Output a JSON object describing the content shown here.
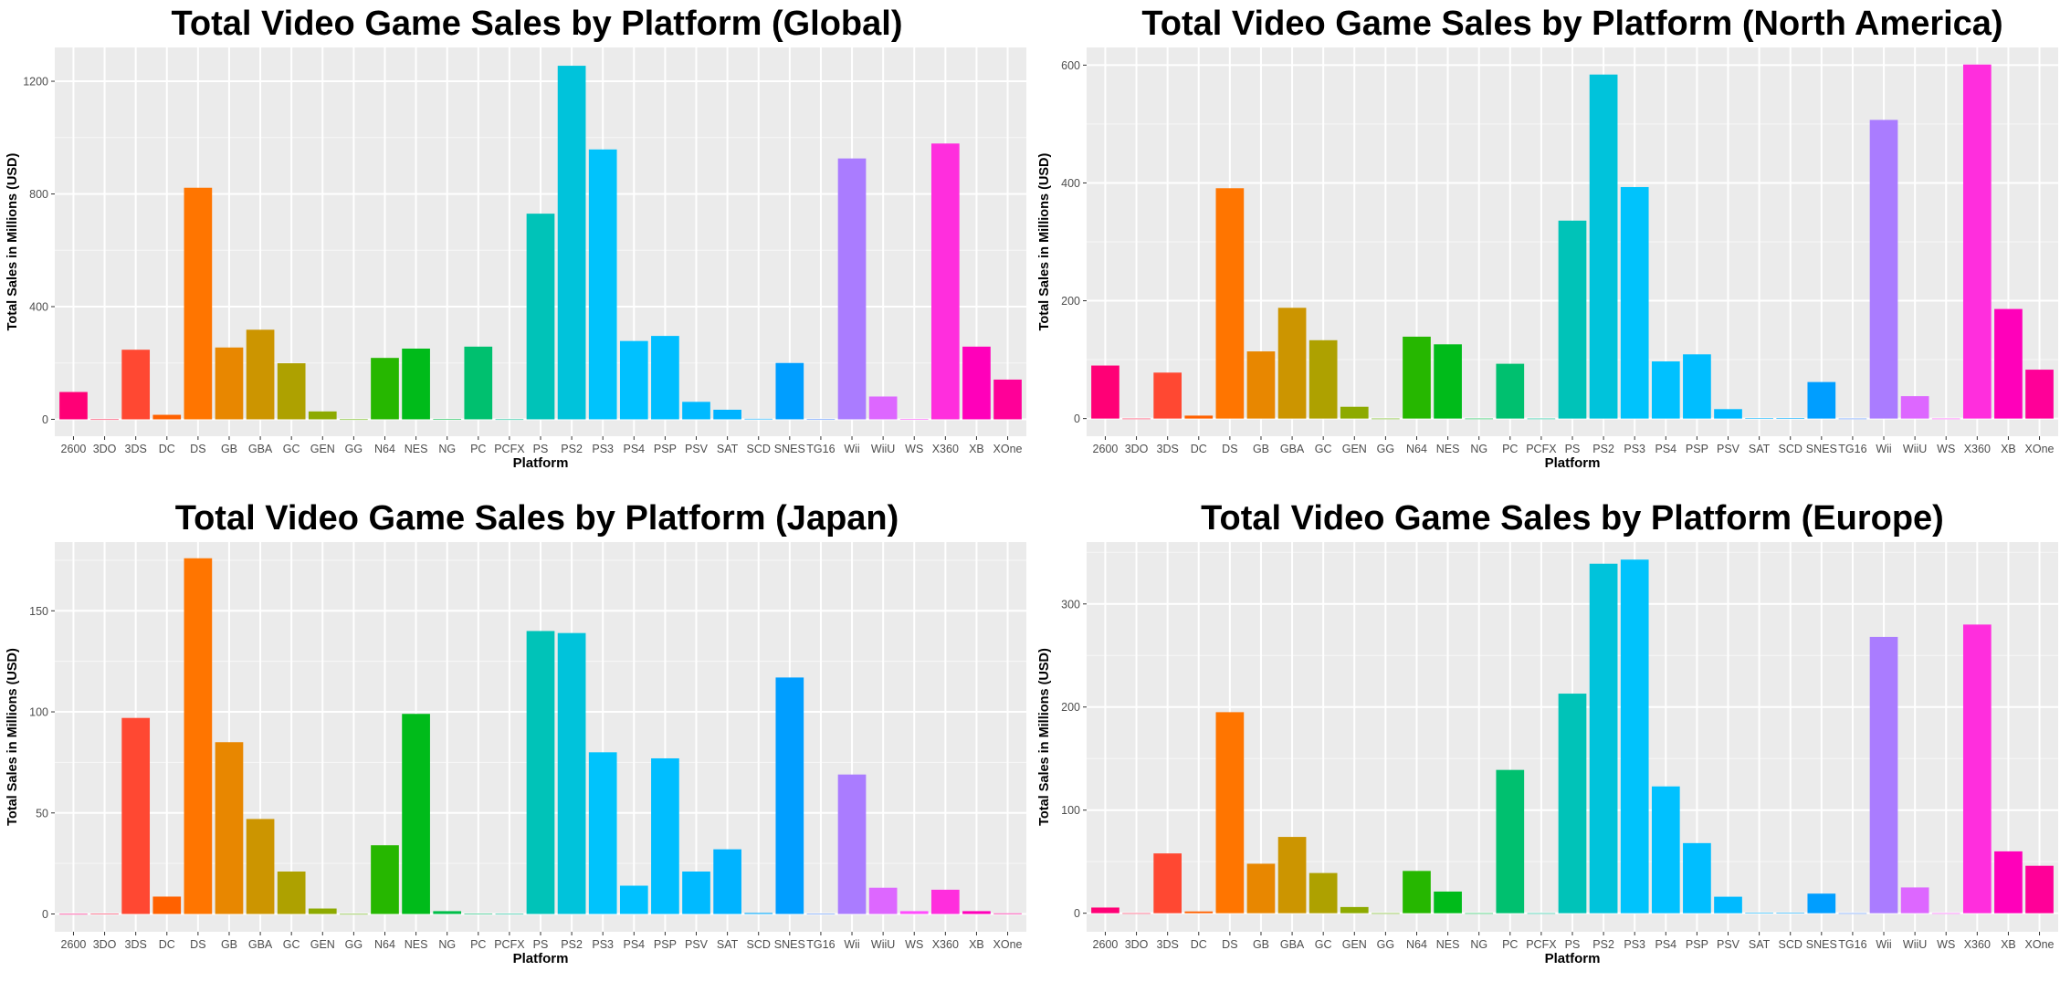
{
  "chart_data": [
    {
      "type": "bar",
      "title": "Total Video Game Sales by Platform (Global)",
      "xlabel": "Platform",
      "ylabel": "Total Sales in Millions (USD)",
      "categories": [
        "2600",
        "3DO",
        "3DS",
        "DC",
        "DS",
        "GB",
        "GBA",
        "GC",
        "GEN",
        "GG",
        "N64",
        "NES",
        "NG",
        "PC",
        "PCFX",
        "PS",
        "PS2",
        "PS3",
        "PS4",
        "PSP",
        "PSV",
        "SAT",
        "SCD",
        "SNES",
        "TG16",
        "Wii",
        "WiiU",
        "WS",
        "X360",
        "XB",
        "XOne"
      ],
      "values": [
        97,
        0.1,
        247,
        16,
        822,
        255,
        318,
        199,
        28,
        0.04,
        218,
        251,
        1.4,
        258,
        0.03,
        730,
        1255,
        958,
        278,
        296,
        62,
        34,
        1.9,
        200,
        0.2,
        926,
        81,
        1.4,
        979,
        258,
        141
      ],
      "ylim": [
        -60,
        1320
      ],
      "yticks": [
        0,
        400,
        800,
        1200
      ],
      "grid": true,
      "legend": "none"
    },
    {
      "type": "bar",
      "title": "Total Video Game Sales by Platform (North America)",
      "xlabel": "Platform",
      "ylabel": "Total Sales in Millions (USD)",
      "categories": [
        "2600",
        "3DO",
        "3DS",
        "DC",
        "DS",
        "GB",
        "GBA",
        "GC",
        "GEN",
        "GG",
        "N64",
        "NES",
        "NG",
        "PC",
        "PCFX",
        "PS",
        "PS2",
        "PS3",
        "PS4",
        "PSP",
        "PSV",
        "SAT",
        "SCD",
        "SNES",
        "TG16",
        "Wii",
        "WiiU",
        "WS",
        "X360",
        "XB",
        "XOne"
      ],
      "values": [
        90,
        0,
        78,
        5,
        391,
        114,
        188,
        133,
        20,
        0,
        139,
        126,
        0,
        93,
        0,
        336,
        584,
        393,
        97,
        109,
        16,
        0.7,
        1,
        62,
        0,
        507,
        38,
        0,
        601,
        186,
        83
      ],
      "ylim": [
        -30,
        630
      ],
      "yticks": [
        0,
        200,
        400,
        600
      ],
      "grid": true,
      "legend": "none"
    },
    {
      "type": "bar",
      "title": "Total Video Game Sales by Platform (Japan)",
      "xlabel": "Platform",
      "ylabel": "Total Sales in Millions (USD)",
      "categories": [
        "2600",
        "3DO",
        "3DS",
        "DC",
        "DS",
        "GB",
        "GBA",
        "GC",
        "GEN",
        "GG",
        "N64",
        "NES",
        "NG",
        "PC",
        "PCFX",
        "PS",
        "PS2",
        "PS3",
        "PS4",
        "PSP",
        "PSV",
        "SAT",
        "SCD",
        "SNES",
        "TG16",
        "Wii",
        "WiiU",
        "WS",
        "X360",
        "XB",
        "XOne"
      ],
      "values": [
        0,
        0.1,
        97,
        8.6,
        176,
        85,
        47,
        21,
        2.7,
        0,
        34,
        99,
        1.4,
        0.2,
        0.03,
        140,
        139,
        80,
        14,
        77,
        21,
        32,
        0.5,
        117,
        0.2,
        69,
        13,
        1.4,
        12,
        1.4,
        0.3
      ],
      "ylim": [
        -8.8,
        184
      ],
      "yticks": [
        0,
        50,
        100,
        150
      ],
      "grid": true,
      "legend": "none"
    },
    {
      "type": "bar",
      "title": "Total Video Game Sales by Platform (Europe)",
      "xlabel": "Platform",
      "ylabel": "Total Sales in Millions (USD)",
      "categories": [
        "2600",
        "3DO",
        "3DS",
        "DC",
        "DS",
        "GB",
        "GBA",
        "GC",
        "GEN",
        "GG",
        "N64",
        "NES",
        "NG",
        "PC",
        "PCFX",
        "PS",
        "PS2",
        "PS3",
        "PS4",
        "PSP",
        "PSV",
        "SAT",
        "SCD",
        "SNES",
        "TG16",
        "Wii",
        "WiiU",
        "WS",
        "X360",
        "XB",
        "XOne"
      ],
      "values": [
        5.5,
        0,
        58,
        1.7,
        195,
        48,
        74,
        39,
        6,
        0,
        41,
        21,
        0,
        139,
        0,
        213,
        339,
        343,
        123,
        68,
        16,
        0.5,
        0.4,
        19,
        0,
        268,
        25,
        0,
        280,
        60,
        46
      ],
      "ylim": [
        -18,
        360
      ],
      "yticks": [
        0,
        100,
        200,
        300
      ],
      "grid": true,
      "legend": "none"
    }
  ]
}
